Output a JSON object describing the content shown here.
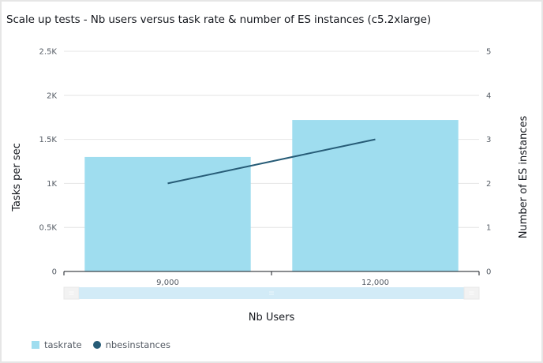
{
  "title": "Scale up tests - Nb users versus task rate & number of ES instances (c5.2xlarge)",
  "colors": {
    "bar": "#9fddef",
    "line": "#275c77",
    "grid": "#e4e4e4",
    "axis": "#16191f",
    "scrollbar_track": "#d2ebf7",
    "scrollbar_handle": "#f2f2f2"
  },
  "chart_data": {
    "type": "bar+line",
    "title": "Scale up tests - Nb users versus task rate & number of ES instances (c5.2xlarge)",
    "xlabel": "Nb Users",
    "ylabel": "Tasks per sec",
    "y2label": "Number of ES instances",
    "categories": [
      "9,000",
      "12,000"
    ],
    "series": [
      {
        "name": "taskrate",
        "type": "bar",
        "axis": "left",
        "values": [
          1300,
          1720
        ]
      },
      {
        "name": "nbesinstances",
        "type": "line",
        "axis": "right",
        "values": [
          2,
          3
        ]
      }
    ],
    "ylim": [
      0,
      2500
    ],
    "y2lim": [
      0,
      5
    ],
    "yticks": [
      "0",
      "0.5K",
      "1K",
      "1.5K",
      "2K",
      "2.5K"
    ],
    "y2ticks": [
      "0",
      "1",
      "2",
      "3",
      "4",
      "5"
    ],
    "grid": true,
    "legend_position": "bottom-left"
  },
  "legend": [
    {
      "label": "taskrate",
      "shape": "square"
    },
    {
      "label": "nbesinstances",
      "shape": "circle"
    }
  ],
  "scrollbar": {
    "left_handle_icon": "grip-lines-icon",
    "center_icon": "grip-dots-icon",
    "right_handle_icon": "grip-lines-icon"
  }
}
